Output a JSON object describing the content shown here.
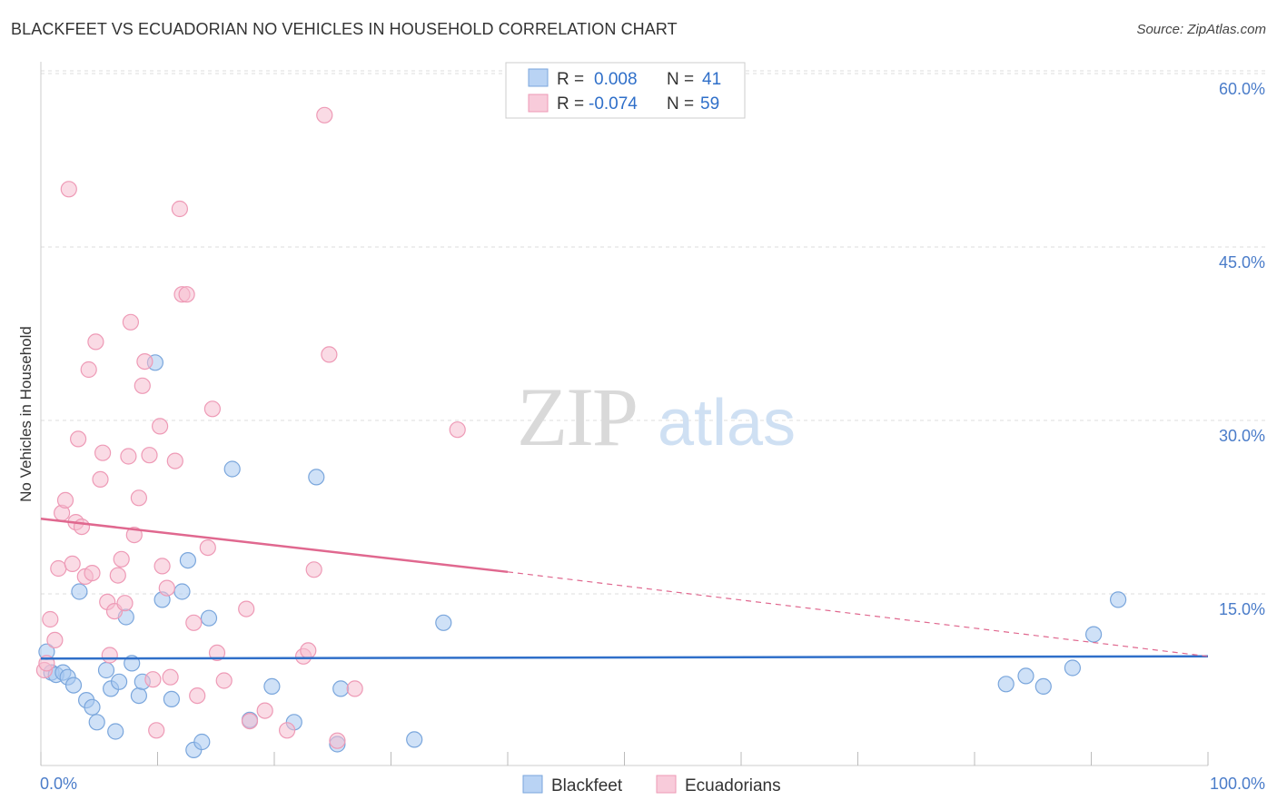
{
  "chart_data": {
    "type": "scatter",
    "title": "BLACKFEET VS ECUADORIAN NO VEHICLES IN HOUSEHOLD CORRELATION CHART",
    "source": "Source: ZipAtlas.com",
    "watermark": {
      "zip": "ZIP",
      "atlas": "atlas"
    },
    "xlabel": "",
    "ylabel": "No Vehicles in Household",
    "xlim": [
      0,
      100
    ],
    "ylim": [
      0,
      63
    ],
    "x_tick_labels": {
      "min": "0.0%",
      "max": "100.0%"
    },
    "x_ticks": [
      0,
      10,
      20,
      30,
      40,
      50,
      60,
      70,
      80,
      90,
      100
    ],
    "y_ticks": [
      {
        "value": 15,
        "label": "15.0%"
      },
      {
        "value": 30,
        "label": "30.0%"
      },
      {
        "value": 45,
        "label": "45.0%"
      },
      {
        "value": 60,
        "label": "60.0%"
      }
    ],
    "grid": true,
    "legend_position": "top-center",
    "colors": {
      "blackfeet_fill": "#a8c8f0",
      "blackfeet_stroke": "#7aa6dc",
      "blackfeet_line": "#2f6fc9",
      "ecuadorian_fill": "#f6bed0",
      "ecuadorian_stroke": "#ee9ab6",
      "ecuadorian_line": "#e0688f",
      "accent_text": "#2f6fc9",
      "grid": "#dddddd"
    },
    "legend": {
      "rows": [
        {
          "r_label": "R =",
          "r_value": "0.008",
          "n_label": "N =",
          "n_value": "41"
        },
        {
          "r_label": "R =",
          "r_value": "-0.074",
          "n_label": "N =",
          "n_value": "59"
        }
      ]
    },
    "series": [
      {
        "name": "Blackfeet",
        "trend": {
          "x1": 0,
          "y1": 9.4,
          "x2": 100,
          "y2": 9.6
        },
        "points": [
          [
            0.5,
            10.0
          ],
          [
            0.9,
            8.2
          ],
          [
            1.3,
            8.0
          ],
          [
            1.9,
            8.2
          ],
          [
            2.3,
            7.8
          ],
          [
            2.8,
            7.1
          ],
          [
            3.3,
            15.2
          ],
          [
            3.9,
            5.8
          ],
          [
            4.4,
            5.2
          ],
          [
            4.8,
            3.9
          ],
          [
            5.6,
            8.4
          ],
          [
            6.0,
            6.8
          ],
          [
            6.4,
            3.1
          ],
          [
            6.7,
            7.4
          ],
          [
            7.3,
            13.0
          ],
          [
            7.8,
            9.0
          ],
          [
            8.4,
            6.2
          ],
          [
            8.7,
            7.4
          ],
          [
            9.8,
            35.0
          ],
          [
            10.4,
            14.5
          ],
          [
            11.2,
            5.9
          ],
          [
            12.1,
            15.2
          ],
          [
            12.6,
            17.9
          ],
          [
            13.1,
            1.5
          ],
          [
            13.8,
            2.2
          ],
          [
            14.4,
            12.9
          ],
          [
            16.4,
            25.8
          ],
          [
            17.9,
            4.1
          ],
          [
            19.8,
            7.0
          ],
          [
            21.7,
            3.9
          ],
          [
            23.6,
            25.1
          ],
          [
            25.4,
            2.0
          ],
          [
            25.7,
            6.8
          ],
          [
            32.0,
            2.4
          ],
          [
            34.5,
            12.5
          ],
          [
            82.7,
            7.2
          ],
          [
            84.4,
            7.9
          ],
          [
            85.9,
            7.0
          ],
          [
            88.4,
            8.6
          ],
          [
            90.2,
            11.5
          ],
          [
            92.3,
            14.5
          ]
        ]
      },
      {
        "name": "Ecuadorians",
        "trend": {
          "x1": 0,
          "y1": 21.5,
          "x2": 40,
          "y2": 16.9,
          "dash_x2": 100,
          "dash_y2": 9.6
        },
        "points": [
          [
            0.3,
            8.4
          ],
          [
            0.5,
            9.0
          ],
          [
            0.8,
            12.8
          ],
          [
            1.2,
            11.0
          ],
          [
            1.5,
            17.2
          ],
          [
            1.8,
            22.0
          ],
          [
            2.1,
            23.1
          ],
          [
            2.4,
            50.0
          ],
          [
            2.7,
            17.6
          ],
          [
            3.0,
            21.2
          ],
          [
            3.2,
            28.4
          ],
          [
            3.5,
            20.8
          ],
          [
            3.8,
            16.5
          ],
          [
            4.1,
            34.4
          ],
          [
            4.4,
            16.8
          ],
          [
            4.7,
            36.8
          ],
          [
            5.1,
            24.9
          ],
          [
            5.3,
            27.2
          ],
          [
            5.7,
            14.3
          ],
          [
            5.9,
            9.7
          ],
          [
            6.3,
            13.5
          ],
          [
            6.6,
            16.6
          ],
          [
            6.9,
            18.0
          ],
          [
            7.2,
            14.2
          ],
          [
            7.5,
            26.9
          ],
          [
            7.7,
            38.5
          ],
          [
            8.0,
            20.1
          ],
          [
            8.4,
            23.3
          ],
          [
            8.7,
            33.0
          ],
          [
            8.9,
            35.1
          ],
          [
            9.3,
            27.0
          ],
          [
            9.6,
            7.6
          ],
          [
            9.9,
            3.2
          ],
          [
            10.2,
            29.5
          ],
          [
            10.4,
            17.4
          ],
          [
            10.8,
            15.5
          ],
          [
            11.1,
            7.8
          ],
          [
            11.5,
            26.5
          ],
          [
            11.9,
            48.3
          ],
          [
            12.1,
            40.9
          ],
          [
            12.5,
            40.9
          ],
          [
            13.1,
            12.5
          ],
          [
            13.4,
            6.2
          ],
          [
            14.3,
            19.0
          ],
          [
            14.7,
            31.0
          ],
          [
            15.1,
            9.9
          ],
          [
            15.7,
            7.5
          ],
          [
            17.6,
            13.7
          ],
          [
            17.9,
            4.0
          ],
          [
            19.2,
            4.9
          ],
          [
            21.1,
            3.2
          ],
          [
            22.5,
            9.6
          ],
          [
            22.9,
            10.1
          ],
          [
            23.4,
            17.1
          ],
          [
            24.3,
            56.4
          ],
          [
            24.7,
            35.7
          ],
          [
            25.4,
            2.3
          ],
          [
            26.9,
            6.8
          ],
          [
            35.7,
            29.2
          ]
        ]
      }
    ]
  }
}
